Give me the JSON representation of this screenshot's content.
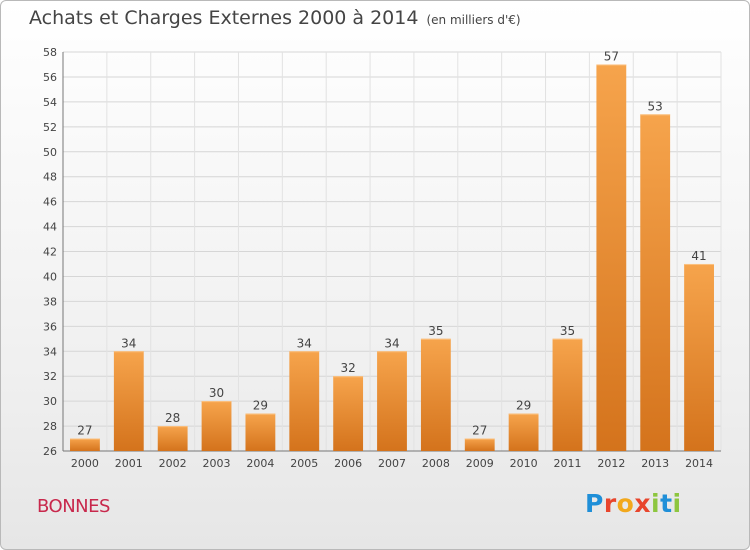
{
  "title": "Achats et Charges Externes 2000 à 2014",
  "unit": "(en milliers d'€)",
  "town": "BONNES",
  "logo": "Proxiti",
  "colors": {
    "bar_light": "#f6a44c",
    "bar_dark": "#d4731c",
    "grid": "#d6d6d6",
    "town": "#c8284c"
  },
  "chart_data": {
    "type": "bar",
    "categories": [
      "2000",
      "2001",
      "2002",
      "2003",
      "2004",
      "2005",
      "2006",
      "2007",
      "2008",
      "2009",
      "2010",
      "2011",
      "2012",
      "2013",
      "2014"
    ],
    "values": [
      27,
      34,
      28,
      30,
      29,
      34,
      32,
      34,
      35,
      27,
      29,
      35,
      57,
      53,
      41
    ],
    "ylim": [
      26,
      58
    ],
    "yticks": [
      26,
      28,
      30,
      32,
      34,
      36,
      38,
      40,
      42,
      44,
      46,
      48,
      50,
      52,
      54,
      56,
      58
    ],
    "grid": true,
    "data_labels": true
  }
}
